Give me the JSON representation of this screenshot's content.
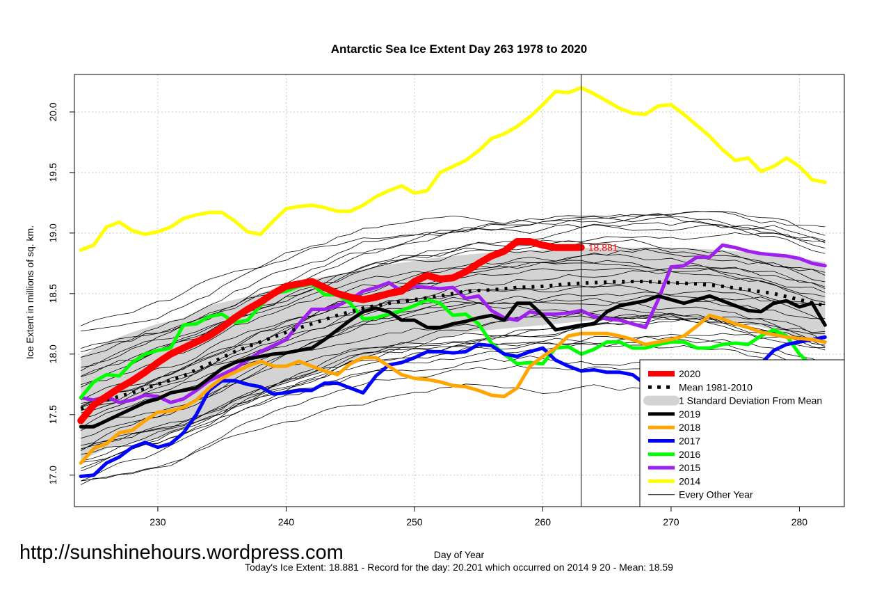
{
  "chart_data": {
    "type": "line",
    "title": "Antarctic Sea Ice Extent Day 263 1978 to 2020",
    "xlabel": "Day of Year",
    "ylabel": "Ice Extent in millions of sq. km.",
    "xlim": [
      223.5,
      283.5
    ],
    "ylim": [
      16.74,
      20.31
    ],
    "x_ticks": [
      230,
      240,
      250,
      260,
      270,
      280
    ],
    "y_ticks": [
      17.0,
      17.5,
      18.0,
      18.5,
      19.0,
      19.5,
      20.0
    ],
    "grid": true,
    "current_day": 263,
    "current_value_label": "18.881",
    "legend_position": "bottom-right",
    "series": [
      {
        "name": "2014",
        "color": "#ffff00",
        "width": 5,
        "x": [
          224,
          225,
          226,
          227,
          228,
          229,
          230,
          231,
          232,
          233,
          234,
          235,
          236,
          237,
          238,
          239,
          240,
          241,
          242,
          243,
          244,
          245,
          246,
          247,
          248,
          249,
          250,
          251,
          252,
          253,
          254,
          255,
          256,
          257,
          258,
          259,
          260,
          261,
          262,
          263,
          264,
          265,
          266,
          267,
          268,
          269,
          270,
          271,
          272,
          273,
          274,
          275,
          276,
          277,
          278,
          279,
          280,
          281,
          282
        ],
        "y": [
          18.86,
          18.9,
          19.05,
          19.09,
          19.02,
          18.99,
          19.01,
          19.05,
          19.12,
          19.15,
          19.17,
          19.17,
          19.1,
          19.01,
          18.99,
          19.1,
          19.2,
          19.22,
          19.23,
          19.21,
          19.18,
          19.18,
          19.23,
          19.3,
          19.35,
          19.39,
          19.33,
          19.35,
          19.5,
          19.55,
          19.6,
          19.68,
          19.78,
          19.82,
          19.88,
          19.96,
          20.06,
          20.17,
          20.16,
          20.2,
          20.15,
          20.09,
          20.03,
          19.99,
          19.98,
          20.05,
          20.06,
          19.98,
          19.89,
          19.8,
          19.69,
          19.6,
          19.62,
          19.51,
          19.55,
          19.62,
          19.55,
          19.44,
          19.42
        ]
      },
      {
        "name": "2015",
        "color": "#a020f0",
        "width": 5,
        "x": [
          224,
          225,
          226,
          227,
          228,
          229,
          230,
          231,
          232,
          233,
          234,
          235,
          236,
          237,
          238,
          239,
          240,
          241,
          242,
          243,
          244,
          245,
          246,
          247,
          248,
          249,
          250,
          251,
          252,
          253,
          254,
          255,
          256,
          257,
          258,
          259,
          260,
          261,
          262,
          263,
          264,
          265,
          266,
          267,
          268,
          269,
          270,
          271,
          272,
          273,
          274,
          275,
          276,
          277,
          278,
          279,
          280,
          281,
          282
        ],
        "y": [
          17.64,
          17.62,
          17.65,
          17.6,
          17.62,
          17.66,
          17.65,
          17.6,
          17.63,
          17.7,
          17.78,
          17.83,
          17.88,
          17.95,
          18.02,
          18.07,
          18.12,
          18.25,
          18.37,
          18.37,
          18.4,
          18.45,
          18.52,
          18.55,
          18.59,
          18.52,
          18.56,
          18.55,
          18.54,
          18.55,
          18.46,
          18.48,
          18.36,
          18.3,
          18.28,
          18.35,
          18.33,
          18.33,
          18.34,
          18.36,
          18.31,
          18.29,
          18.28,
          18.25,
          18.22,
          18.45,
          18.72,
          18.73,
          18.8,
          18.8,
          18.9,
          18.88,
          18.85,
          18.83,
          18.82,
          18.81,
          18.79,
          18.75,
          18.73
        ]
      },
      {
        "name": "2016",
        "color": "#00ff00",
        "width": 5,
        "x": [
          224,
          225,
          226,
          227,
          228,
          229,
          230,
          231,
          232,
          233,
          234,
          235,
          236,
          237,
          238,
          239,
          240,
          241,
          242,
          243,
          244,
          245,
          246,
          247,
          248,
          249,
          250,
          251,
          252,
          253,
          254,
          255,
          256,
          257,
          258,
          259,
          260,
          261,
          262,
          263,
          264,
          265,
          266,
          267,
          268,
          269,
          270,
          271,
          272,
          273,
          274,
          275,
          276,
          277,
          278,
          279,
          280,
          281,
          282
        ],
        "y": [
          17.64,
          17.77,
          17.83,
          17.82,
          17.93,
          18.0,
          18.03,
          18.05,
          18.24,
          18.25,
          18.31,
          18.33,
          18.26,
          18.28,
          18.4,
          18.5,
          18.52,
          18.56,
          18.58,
          18.49,
          18.49,
          18.42,
          18.29,
          18.3,
          18.33,
          18.36,
          18.4,
          18.45,
          18.42,
          18.32,
          18.33,
          18.25,
          18.09,
          18.0,
          17.92,
          17.93,
          17.92,
          18.05,
          18.06,
          18.0,
          18.04,
          18.1,
          18.1,
          18.05,
          18.05,
          18.08,
          18.1,
          18.1,
          18.05,
          18.05,
          18.08,
          18.09,
          18.08,
          18.15,
          18.2,
          18.15,
          18.0,
          17.9,
          17.86
        ]
      },
      {
        "name": "2017",
        "color": "#0000ff",
        "width": 5,
        "x": [
          224,
          225,
          226,
          227,
          228,
          229,
          230,
          231,
          232,
          233,
          234,
          235,
          236,
          237,
          238,
          239,
          240,
          241,
          242,
          243,
          244,
          245,
          246,
          247,
          248,
          249,
          250,
          251,
          252,
          253,
          254,
          255,
          256,
          257,
          258,
          259,
          260,
          261,
          262,
          263,
          264,
          265,
          266,
          267,
          268,
          269,
          270,
          271,
          272,
          273,
          274,
          275,
          276,
          277,
          278,
          279,
          280,
          281,
          282
        ],
        "y": [
          16.99,
          17.0,
          17.1,
          17.15,
          17.23,
          17.27,
          17.23,
          17.26,
          17.35,
          17.5,
          17.7,
          17.78,
          17.78,
          17.75,
          17.73,
          17.67,
          17.68,
          17.7,
          17.7,
          17.76,
          17.76,
          17.72,
          17.68,
          17.82,
          17.91,
          17.93,
          17.97,
          18.02,
          18.02,
          18.01,
          18.02,
          18.08,
          18.07,
          18.0,
          17.98,
          18.02,
          18.05,
          17.95,
          17.9,
          17.86,
          17.87,
          17.85,
          17.85,
          17.83,
          17.75,
          17.8,
          17.83,
          17.85,
          17.85,
          17.83,
          17.85,
          17.87,
          17.88,
          17.92,
          18.03,
          18.08,
          18.1,
          18.12,
          18.14
        ]
      },
      {
        "name": "2018",
        "color": "#ffa500",
        "width": 5,
        "x": [
          224,
          225,
          226,
          227,
          228,
          229,
          230,
          231,
          232,
          233,
          234,
          235,
          236,
          237,
          238,
          239,
          240,
          241,
          242,
          243,
          244,
          245,
          246,
          247,
          248,
          249,
          250,
          251,
          252,
          253,
          254,
          255,
          256,
          257,
          258,
          259,
          260,
          261,
          262,
          263,
          264,
          265,
          266,
          267,
          268,
          269,
          270,
          271,
          272,
          273,
          274,
          275,
          276,
          277,
          278,
          279,
          280,
          281,
          282
        ],
        "y": [
          17.1,
          17.22,
          17.26,
          17.35,
          17.37,
          17.45,
          17.52,
          17.53,
          17.56,
          17.62,
          17.72,
          17.8,
          17.85,
          17.9,
          17.94,
          17.9,
          17.9,
          17.94,
          17.9,
          17.86,
          17.83,
          17.92,
          17.97,
          17.97,
          17.9,
          17.83,
          17.8,
          17.79,
          17.77,
          17.74,
          17.73,
          17.7,
          17.66,
          17.65,
          17.72,
          17.9,
          17.98,
          18.05,
          18.15,
          18.17,
          18.17,
          18.17,
          18.15,
          18.12,
          18.08,
          18.1,
          18.12,
          18.15,
          18.23,
          18.32,
          18.29,
          18.25,
          18.22,
          18.18,
          18.16,
          18.14,
          18.13,
          18.12,
          18.1
        ]
      },
      {
        "name": "2019",
        "color": "#000000",
        "width": 5,
        "x": [
          224,
          225,
          226,
          227,
          228,
          229,
          230,
          231,
          232,
          233,
          234,
          235,
          236,
          237,
          238,
          239,
          240,
          241,
          242,
          243,
          244,
          245,
          246,
          247,
          248,
          249,
          250,
          251,
          252,
          253,
          254,
          255,
          256,
          257,
          258,
          259,
          260,
          261,
          262,
          263,
          264,
          265,
          266,
          267,
          268,
          269,
          270,
          271,
          272,
          273,
          274,
          275,
          276,
          277,
          278,
          279,
          280,
          281,
          282
        ],
        "y": [
          17.4,
          17.4,
          17.45,
          17.5,
          17.55,
          17.6,
          17.63,
          17.68,
          17.7,
          17.72,
          17.8,
          17.88,
          17.93,
          17.96,
          17.98,
          18.0,
          18.01,
          18.03,
          18.05,
          18.12,
          18.2,
          18.28,
          18.35,
          18.38,
          18.35,
          18.28,
          18.28,
          18.22,
          18.22,
          18.25,
          18.27,
          18.3,
          18.32,
          18.28,
          18.42,
          18.42,
          18.32,
          18.2,
          18.22,
          18.24,
          18.25,
          18.35,
          18.4,
          18.42,
          18.44,
          18.48,
          18.45,
          18.42,
          18.45,
          18.48,
          18.44,
          18.4,
          18.36,
          18.35,
          18.42,
          18.44,
          18.39,
          18.42,
          18.24
        ]
      },
      {
        "name": "Mean 1981-2010",
        "color": "#000000",
        "width": 5,
        "dash": true,
        "x": [
          224,
          226,
          228,
          230,
          232,
          234,
          236,
          238,
          240,
          242,
          244,
          246,
          248,
          250,
          252,
          254,
          256,
          258,
          260,
          262,
          264,
          266,
          268,
          270,
          272,
          274,
          276,
          278,
          280,
          282
        ],
        "y": [
          17.55,
          17.62,
          17.68,
          17.75,
          17.82,
          17.92,
          18.02,
          18.1,
          18.18,
          18.25,
          18.32,
          18.38,
          18.42,
          18.45,
          18.48,
          18.52,
          18.53,
          18.55,
          18.56,
          18.58,
          18.59,
          18.6,
          18.6,
          18.59,
          18.58,
          18.56,
          18.53,
          18.5,
          18.45,
          18.4
        ]
      },
      {
        "name": "2020",
        "color": "#ff0000",
        "width": 10,
        "x": [
          224,
          225,
          226,
          227,
          228,
          229,
          230,
          231,
          232,
          233,
          234,
          235,
          236,
          237,
          238,
          239,
          240,
          241,
          242,
          243,
          244,
          245,
          246,
          247,
          248,
          249,
          250,
          251,
          252,
          253,
          254,
          255,
          256,
          257,
          258,
          259,
          260,
          261,
          262,
          263
        ],
        "y": [
          17.45,
          17.58,
          17.65,
          17.72,
          17.78,
          17.85,
          17.93,
          18.0,
          18.05,
          18.1,
          18.15,
          18.22,
          18.3,
          18.37,
          18.43,
          18.5,
          18.56,
          18.58,
          18.6,
          18.55,
          18.5,
          18.47,
          18.45,
          18.47,
          18.5,
          18.52,
          18.6,
          18.65,
          18.62,
          18.63,
          18.68,
          18.75,
          18.81,
          18.85,
          18.93,
          18.93,
          18.9,
          18.88,
          18.88,
          18.881
        ]
      }
    ],
    "std_band": {
      "name": "1 Standard Deviation From Mean",
      "color": "#d3d3d3",
      "x": [
        224,
        226,
        228,
        230,
        232,
        234,
        236,
        238,
        240,
        242,
        244,
        246,
        248,
        250,
        252,
        254,
        256,
        258,
        260,
        262,
        264,
        266,
        268,
        270,
        272,
        274,
        276,
        278,
        280,
        282
      ],
      "upper": [
        17.98,
        18.1,
        18.18,
        18.25,
        18.3,
        18.4,
        18.45,
        18.5,
        18.58,
        18.62,
        18.66,
        18.7,
        18.74,
        18.77,
        18.8,
        18.82,
        18.84,
        18.85,
        18.86,
        18.87,
        18.88,
        18.88,
        18.88,
        18.88,
        18.87,
        18.86,
        18.84,
        18.82,
        18.79,
        18.76
      ],
      "lower": [
        17.12,
        17.22,
        17.27,
        17.3,
        17.38,
        17.48,
        17.58,
        17.66,
        17.76,
        17.83,
        17.9,
        17.97,
        18.03,
        18.08,
        18.13,
        18.18,
        18.2,
        18.22,
        18.24,
        18.26,
        18.28,
        18.29,
        18.3,
        18.3,
        18.3,
        18.28,
        18.25,
        18.2,
        18.14,
        18.08
      ]
    },
    "legend": [
      {
        "label": "2020",
        "color": "#ff0000",
        "style": "solid",
        "width": 8
      },
      {
        "label": "Mean 1981-2010",
        "color": "#000000",
        "style": "dashed",
        "width": 5
      },
      {
        "label": "1 Standard Deviation From Mean",
        "color": "#d3d3d3",
        "style": "band",
        "width": 14
      },
      {
        "label": "2019",
        "color": "#000000",
        "style": "solid",
        "width": 5
      },
      {
        "label": "2018",
        "color": "#ffa500",
        "style": "solid",
        "width": 5
      },
      {
        "label": "2017",
        "color": "#0000ff",
        "style": "solid",
        "width": 5
      },
      {
        "label": "2016",
        "color": "#00ff00",
        "style": "solid",
        "width": 5
      },
      {
        "label": "2015",
        "color": "#a020f0",
        "style": "solid",
        "width": 5
      },
      {
        "label": "2014",
        "color": "#ffff00",
        "style": "solid",
        "width": 5
      },
      {
        "label": "Every Other Year",
        "color": "#000000",
        "style": "solid",
        "width": 1
      }
    ]
  },
  "watermark": "http://sunshinehours.wordpress.com",
  "footer": "Today's Ice Extent: 18.881  - Record for the day: 20.201 which occurred on 2014 9 20  - Mean: 18.59"
}
